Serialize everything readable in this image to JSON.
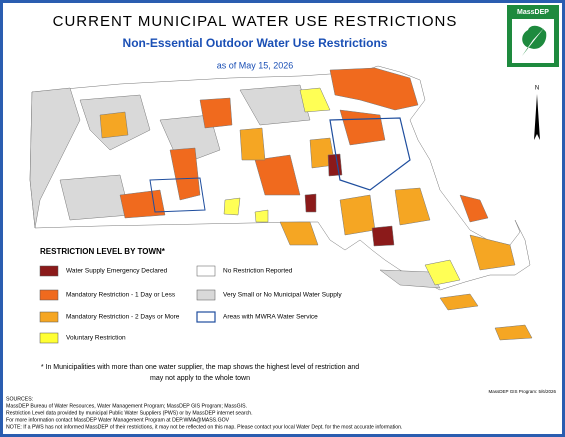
{
  "header": {
    "title": "CURRENT MUNICIPAL WATER USE RESTRICTIONS",
    "subtitle": "Non-Essential Outdoor Water Use Restrictions",
    "date": "as of May 15, 2026"
  },
  "logo": {
    "text": "MassDEP"
  },
  "north_arrow": {
    "label": "N"
  },
  "legend": {
    "title": "RESTRICTION LEVEL BY TOWN*",
    "items": [
      "Water Supply Emergency Declared",
      "Mandatory Restriction - 1 Day or Less",
      "Mandatory Restriction - 2 Days or More",
      "Voluntary Restriction",
      "No Restriction Reported",
      "Very Small or No Municipal Water Supply",
      "Areas with MWRA Water Service"
    ]
  },
  "footnote": [
    "* In Municipalities with more than one water supplier, the map shows the highest level of restriction and",
    "may not apply to the whole town"
  ],
  "credit": "MassDEP GIS Program: 5/6/2026",
  "sources": [
    "SOURCES:",
    "MassDEP Bureau of Water Resources, Water Management Program; MassDEP GIS Program; MassGIS.",
    "Restriction Level data provided by municipal Public Water Suppliers (PWS) or by MassDEP internet search.",
    "For more information contact MassDEP Water Management Program at DEP.WMA@MASS.GOV",
    "NOTE: If a PWS has not informed MassDEP of their restrictions, it may not be reflected on this map. Please contact your local Water Dept. for the most accurate information."
  ]
}
